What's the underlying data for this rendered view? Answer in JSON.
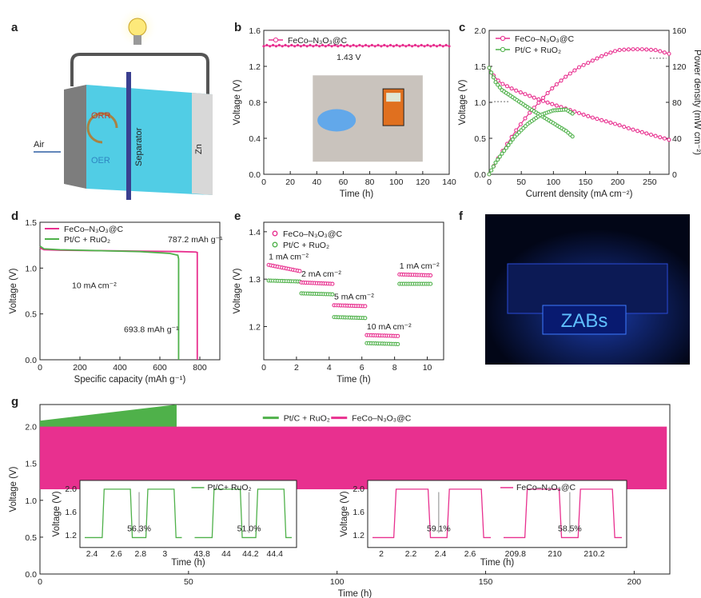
{
  "panels": {
    "a": "a",
    "b": "b",
    "c": "c",
    "d": "d",
    "e": "e",
    "f": "f",
    "g": "g"
  },
  "colors": {
    "pink": "#e8308f",
    "green": "#4fb14a",
    "cyan": "#33c4e0"
  },
  "diagram_a": {
    "orr": "ORR",
    "oer": "OER",
    "air": "Air",
    "separator": "Separator",
    "zn": "Zn"
  },
  "photo_f": {
    "display_text": "ZABs"
  },
  "chart_data": [
    {
      "id": "b",
      "type": "line",
      "xlabel": "Time (h)",
      "ylabel": "Voltage (V)",
      "xlim": [
        0,
        140
      ],
      "ylim": [
        0,
        1.6
      ],
      "xticks": [
        0,
        20,
        40,
        60,
        80,
        100,
        120,
        140
      ],
      "yticks": [
        0,
        0.4,
        0.8,
        1.2,
        1.6
      ],
      "series": [
        {
          "name": "FeCo–N₃O₃@C",
          "color": "#e8308f",
          "x": [
            0,
            140
          ],
          "y": [
            1.43,
            1.43
          ]
        }
      ],
      "annotation": "1.43 V"
    },
    {
      "id": "c",
      "type": "line",
      "xlabel": "Current density (mA cm⁻²)",
      "ylabel": "Voltage (V)",
      "y2label": "Power density (mW cm⁻²)",
      "xlim": [
        0,
        280
      ],
      "ylim": [
        0,
        2.0
      ],
      "y2lim": [
        0,
        160
      ],
      "xticks": [
        0,
        50,
        100,
        150,
        200,
        250
      ],
      "yticks": [
        0,
        0.5,
        1.0,
        1.5,
        2.0
      ],
      "y2ticks": [
        0,
        40,
        80,
        120,
        160
      ],
      "series": [
        {
          "name": "FeCo–N₃O₃@C",
          "color": "#e8308f",
          "voltage": {
            "x": [
              0,
              5,
              10,
              20,
              40,
              60,
              80,
              100,
              120,
              140,
              160,
              180,
              200,
              220,
              240,
              260,
              280
            ],
            "y": [
              1.48,
              1.4,
              1.33,
              1.26,
              1.17,
              1.1,
              1.03,
              0.97,
              0.91,
              0.85,
              0.79,
              0.74,
              0.69,
              0.63,
              0.58,
              0.53,
              0.48
            ]
          },
          "power": {
            "x": [
              0,
              10,
              20,
              40,
              60,
              80,
              100,
              120,
              140,
              160,
              180,
              200,
              220,
              240,
              260,
              280
            ],
            "y": [
              0,
              13,
              25,
              47,
              66,
              82,
              97,
              109,
              119,
              126,
              133,
              138,
              139,
              139,
              138,
              134
            ]
          }
        },
        {
          "name": "Pt/C + RuO₂",
          "color": "#4fb14a",
          "voltage": {
            "x": [
              0,
              5,
              10,
              20,
              40,
              60,
              80,
              100,
              120,
              133
            ],
            "y": [
              1.48,
              1.38,
              1.28,
              1.17,
              1.05,
              0.93,
              0.82,
              0.71,
              0.6,
              0.5
            ]
          },
          "power": {
            "x": [
              0,
              10,
              20,
              40,
              60,
              80,
              100,
              120,
              133
            ],
            "y": [
              0,
              13,
              23,
              42,
              56,
              66,
              71,
              72,
              66
            ]
          }
        }
      ]
    },
    {
      "id": "d",
      "type": "line",
      "xlabel": "Specific capacity (mAh g⁻¹)",
      "ylabel": "Voltage (V)",
      "xlim": [
        0,
        900
      ],
      "ylim": [
        0,
        1.5
      ],
      "xticks": [
        0,
        200,
        400,
        600,
        800
      ],
      "yticks": [
        0,
        0.5,
        1.0,
        1.5
      ],
      "series": [
        {
          "name": "FeCo–N₃O₃@C",
          "color": "#e8308f",
          "x": [
            0,
            20,
            100,
            300,
            500,
            700,
            780,
            787.2,
            787.2
          ],
          "y": [
            1.22,
            1.2,
            1.195,
            1.19,
            1.185,
            1.18,
            1.175,
            1.17,
            0
          ]
        },
        {
          "name": "Pt/C + RuO₂",
          "color": "#4fb14a",
          "x": [
            0,
            20,
            100,
            300,
            500,
            650,
            690,
            693.8,
            693.8
          ],
          "y": [
            1.24,
            1.21,
            1.2,
            1.19,
            1.18,
            1.16,
            1.14,
            1.1,
            0
          ]
        }
      ],
      "annotations": [
        "787.2 mAh g⁻¹",
        "693.8 mAh g⁻¹",
        "10 mA cm⁻²"
      ]
    },
    {
      "id": "e",
      "type": "line",
      "xlabel": "Time (h)",
      "ylabel": "Voltage (V)",
      "xlim": [
        0,
        11
      ],
      "ylim": [
        1.13,
        1.42
      ],
      "xticks": [
        0,
        2,
        4,
        6,
        8,
        10
      ],
      "yticks": [
        1.2,
        1.3,
        1.4
      ],
      "steps": [
        {
          "label": "1 mA cm⁻²",
          "t0": 0.3,
          "t1": 2.2,
          "pink": [
            1.33,
            1.317
          ],
          "green": [
            1.297,
            1.295
          ]
        },
        {
          "label": "2 mA cm⁻²",
          "t0": 2.3,
          "t1": 4.2,
          "pink": [
            1.293,
            1.29
          ],
          "green": [
            1.27,
            1.268
          ]
        },
        {
          "label": "5 mA cm⁻²",
          "t0": 4.3,
          "t1": 6.2,
          "pink": [
            1.245,
            1.243
          ],
          "green": [
            1.22,
            1.218
          ]
        },
        {
          "label": "10 mA cm⁻²",
          "t0": 6.3,
          "t1": 8.2,
          "pink": [
            1.182,
            1.18
          ],
          "green": [
            1.165,
            1.163
          ]
        },
        {
          "label": "1 mA cm⁻²",
          "t0": 8.3,
          "t1": 10.2,
          "pink": [
            1.31,
            1.308
          ],
          "green": [
            1.29,
            1.29
          ]
        }
      ],
      "legend": [
        {
          "name": "FeCo–N₃O₃@C",
          "color": "#e8308f"
        },
        {
          "name": "Pt/C + RuO₂",
          "color": "#4fb14a"
        }
      ]
    },
    {
      "id": "g",
      "type": "line",
      "xlabel": "Time (h)",
      "ylabel": "Voltage (V)",
      "xlim": [
        0,
        212
      ],
      "ylim": [
        0,
        2.3
      ],
      "xticks": [
        0,
        50,
        100,
        150,
        200
      ],
      "yticks": [
        0,
        0.5,
        1.0,
        1.5,
        2.0
      ],
      "series": [
        {
          "name": "Pt/C + RuO₂",
          "color": "#4fb14a",
          "x_end": 46,
          "charge": [
            2.08,
            2.3
          ],
          "discharge": [
            1.2,
            1.05
          ]
        },
        {
          "name": "FeCo–N₃O₃@C",
          "color": "#e8308f",
          "x_end": 211,
          "charge": [
            2.0,
            2.0
          ],
          "discharge": [
            1.15,
            1.15
          ]
        }
      ],
      "insets": [
        {
          "name": "Pt/C+ RuO₂",
          "color": "#4fb14a",
          "xlabel": "Time (h)",
          "ylabel": "Voltage (V)",
          "seg1_ticks": [
            2.4,
            2.6,
            2.8,
            3.0
          ],
          "seg2_ticks": [
            43.8,
            44.0,
            44.2,
            44.4
          ],
          "yticks": [
            1.2,
            1.6,
            2.0
          ],
          "efficiencies": [
            "56.3%",
            "51.0%"
          ]
        },
        {
          "name": "FeCo–N₃O₃@C",
          "color": "#e8308f",
          "xlabel": "Time (h)",
          "ylabel": "Voltage (V)",
          "seg1_ticks": [
            2.0,
            2.2,
            2.4,
            2.6
          ],
          "seg2_ticks": [
            209.8,
            210.0,
            210.2
          ],
          "yticks": [
            1.2,
            1.6,
            2.0
          ],
          "efficiencies": [
            "59.1%",
            "58.5%"
          ]
        }
      ]
    }
  ]
}
